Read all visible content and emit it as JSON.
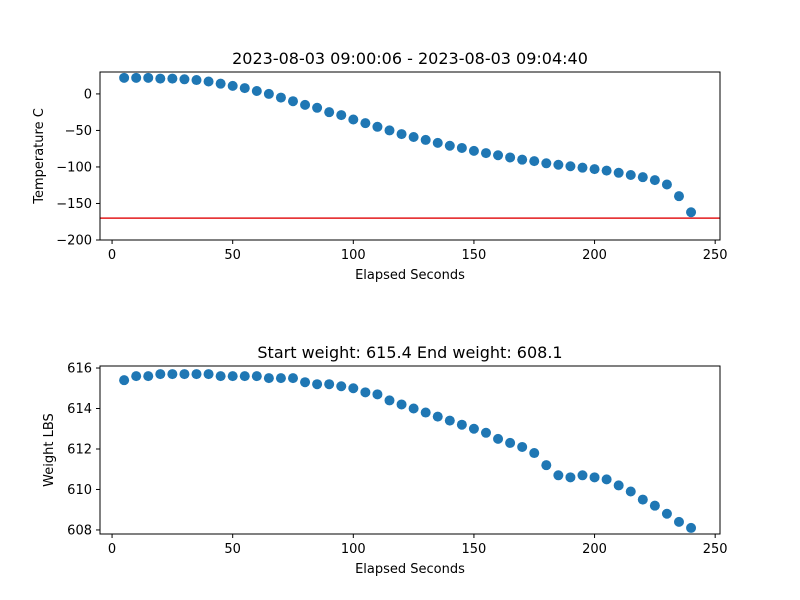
{
  "chart_data": [
    {
      "type": "scatter",
      "title": "2023-08-03 09:00:06 - 2023-08-03 09:04:40",
      "xlabel": "Elapsed Seconds",
      "ylabel": "Temperature C",
      "xlim": [
        -5,
        252
      ],
      "ylim": [
        -200,
        30
      ],
      "xticks": [
        0,
        50,
        100,
        150,
        200,
        250
      ],
      "yticks": [
        -200,
        -150,
        -100,
        -50,
        0
      ],
      "ytick_labels": [
        "−200",
        "−150",
        "−100",
        "−50",
        "0"
      ],
      "grid": false,
      "marker_color": "#1f77b4",
      "reference_line": {
        "y": -170,
        "color": "#e31a1c"
      },
      "x": [
        5,
        10,
        15,
        20,
        25,
        30,
        35,
        40,
        45,
        50,
        55,
        60,
        65,
        70,
        75,
        80,
        85,
        90,
        95,
        100,
        105,
        110,
        115,
        120,
        125,
        130,
        135,
        140,
        145,
        150,
        155,
        160,
        165,
        170,
        175,
        180,
        185,
        190,
        195,
        200,
        205,
        210,
        215,
        220,
        225,
        230,
        235,
        240
      ],
      "y": [
        22,
        22,
        22,
        21,
        21,
        20,
        19,
        17,
        14,
        11,
        8,
        4,
        0,
        -5,
        -10,
        -15,
        -19,
        -25,
        -29,
        -35,
        -40,
        -45,
        -50,
        -55,
        -59,
        -63,
        -67,
        -71,
        -74,
        -78,
        -81,
        -84,
        -87,
        -90,
        -92,
        -95,
        -97,
        -99,
        -101,
        -103,
        -105,
        -108,
        -111,
        -114,
        -118,
        -124,
        -140,
        -162
      ]
    },
    {
      "type": "scatter",
      "title": "Start weight: 615.4 End weight: 608.1",
      "xlabel": "Elapsed Seconds",
      "ylabel": "Weight LBS",
      "xlim": [
        -5,
        252
      ],
      "ylim": [
        607.8,
        616.1
      ],
      "xticks": [
        0,
        50,
        100,
        150,
        200,
        250
      ],
      "yticks": [
        608,
        610,
        612,
        614,
        616
      ],
      "ytick_labels": [
        "608",
        "610",
        "612",
        "614",
        "616"
      ],
      "grid": false,
      "marker_color": "#1f77b4",
      "x": [
        5,
        10,
        15,
        20,
        25,
        30,
        35,
        40,
        45,
        50,
        55,
        60,
        65,
        70,
        75,
        80,
        85,
        90,
        95,
        100,
        105,
        110,
        115,
        120,
        125,
        130,
        135,
        140,
        145,
        150,
        155,
        160,
        165,
        170,
        175,
        180,
        185,
        190,
        195,
        200,
        205,
        210,
        215,
        220,
        225,
        230,
        235,
        240
      ],
      "y": [
        615.4,
        615.6,
        615.6,
        615.7,
        615.7,
        615.7,
        615.7,
        615.7,
        615.6,
        615.6,
        615.6,
        615.6,
        615.5,
        615.5,
        615.5,
        615.3,
        615.2,
        615.2,
        615.1,
        615.0,
        614.8,
        614.7,
        614.4,
        614.2,
        614.0,
        613.8,
        613.6,
        613.4,
        613.2,
        613.0,
        612.8,
        612.5,
        612.3,
        612.1,
        611.8,
        611.2,
        610.7,
        610.6,
        610.7,
        610.6,
        610.5,
        610.2,
        609.9,
        609.5,
        609.2,
        608.8,
        608.4,
        608.1
      ]
    }
  ]
}
